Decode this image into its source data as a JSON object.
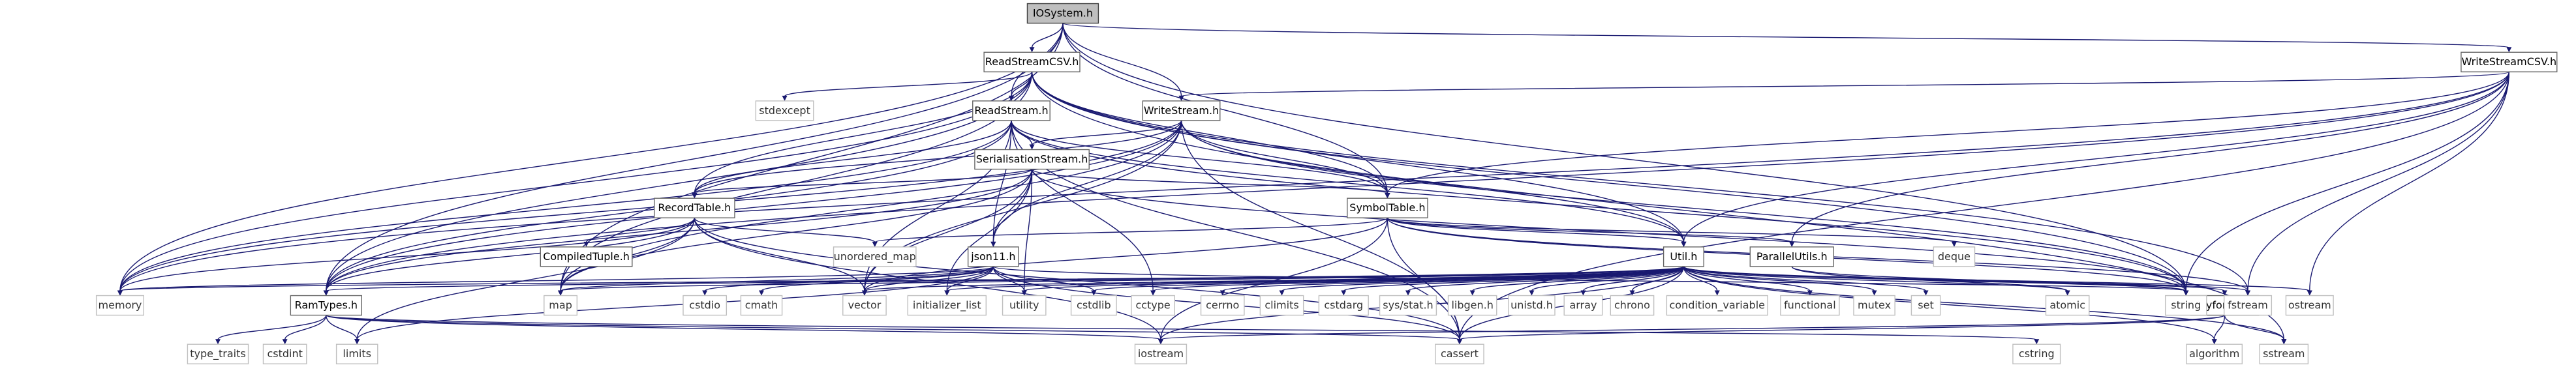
{
  "diagram": {
    "nodes": [
      {
        "id": "IOSystem",
        "label": "IOSystem.h",
        "kind": "root"
      },
      {
        "id": "ReadStreamCSV",
        "label": "ReadStreamCSV.h",
        "kind": "user"
      },
      {
        "id": "WriteStreamCSV",
        "label": "WriteStreamCSV.h",
        "kind": "user"
      },
      {
        "id": "ReadStream",
        "label": "ReadStream.h",
        "kind": "user"
      },
      {
        "id": "WriteStream",
        "label": "WriteStream.h",
        "kind": "user"
      },
      {
        "id": "SerialisationStream",
        "label": "SerialisationStream.h",
        "kind": "user"
      },
      {
        "id": "SymbolTable",
        "label": "SymbolTable.h",
        "kind": "user"
      },
      {
        "id": "RecordTable",
        "label": "RecordTable.h",
        "kind": "user"
      },
      {
        "id": "ParallelUtils",
        "label": "ParallelUtils.h",
        "kind": "user"
      },
      {
        "id": "CompiledTuple",
        "label": "CompiledTuple.h",
        "kind": "user"
      },
      {
        "id": "json11",
        "label": "json11.h",
        "kind": "user"
      },
      {
        "id": "Util",
        "label": "Util.h",
        "kind": "user"
      },
      {
        "id": "RamTypes",
        "label": "RamTypes.h",
        "kind": "user"
      },
      {
        "id": "tinyformat",
        "label": "tinyformat.h",
        "kind": "user"
      },
      {
        "id": "stdexcept",
        "label": "stdexcept",
        "kind": "sys"
      },
      {
        "id": "unordered_map",
        "label": "unordered_map",
        "kind": "sys"
      },
      {
        "id": "deque",
        "label": "deque",
        "kind": "sys"
      },
      {
        "id": "memory",
        "label": "memory",
        "kind": "sys"
      },
      {
        "id": "map",
        "label": "map",
        "kind": "sys"
      },
      {
        "id": "cstdio",
        "label": "cstdio",
        "kind": "sys"
      },
      {
        "id": "cmath",
        "label": "cmath",
        "kind": "sys"
      },
      {
        "id": "vector",
        "label": "vector",
        "kind": "sys"
      },
      {
        "id": "initializer_list",
        "label": "initializer_list",
        "kind": "sys"
      },
      {
        "id": "utility",
        "label": "utility",
        "kind": "sys"
      },
      {
        "id": "cstdlib",
        "label": "cstdlib",
        "kind": "sys"
      },
      {
        "id": "cctype",
        "label": "cctype",
        "kind": "sys"
      },
      {
        "id": "cerrno",
        "label": "cerrno",
        "kind": "sys"
      },
      {
        "id": "climits",
        "label": "climits",
        "kind": "sys"
      },
      {
        "id": "cstdarg",
        "label": "cstdarg",
        "kind": "sys"
      },
      {
        "id": "sys_stat",
        "label": "sys/stat.h",
        "kind": "sys"
      },
      {
        "id": "libgen",
        "label": "libgen.h",
        "kind": "sys"
      },
      {
        "id": "unistd",
        "label": "unistd.h",
        "kind": "sys"
      },
      {
        "id": "array",
        "label": "array",
        "kind": "sys"
      },
      {
        "id": "chrono",
        "label": "chrono",
        "kind": "sys"
      },
      {
        "id": "condition_variable",
        "label": "condition_variable",
        "kind": "sys"
      },
      {
        "id": "functional",
        "label": "functional",
        "kind": "sys"
      },
      {
        "id": "mutex",
        "label": "mutex",
        "kind": "sys"
      },
      {
        "id": "set",
        "label": "set",
        "kind": "sys"
      },
      {
        "id": "atomic",
        "label": "atomic",
        "kind": "sys"
      },
      {
        "id": "string",
        "label": "string",
        "kind": "sys"
      },
      {
        "id": "fstream",
        "label": "fstream",
        "kind": "sys"
      },
      {
        "id": "ostream",
        "label": "ostream",
        "kind": "sys"
      },
      {
        "id": "type_traits",
        "label": "type_traits",
        "kind": "sys"
      },
      {
        "id": "cstdint",
        "label": "cstdint",
        "kind": "sys"
      },
      {
        "id": "limits",
        "label": "limits",
        "kind": "sys"
      },
      {
        "id": "cstring",
        "label": "cstring",
        "kind": "sys"
      },
      {
        "id": "iostream",
        "label": "iostream",
        "kind": "sys"
      },
      {
        "id": "cassert",
        "label": "cassert",
        "kind": "sys"
      },
      {
        "id": "algorithm",
        "label": "algorithm",
        "kind": "sys"
      },
      {
        "id": "sstream",
        "label": "sstream",
        "kind": "sys"
      }
    ],
    "edges": [
      [
        "IOSystem",
        "ReadStreamCSV"
      ],
      [
        "IOSystem",
        "WriteStreamCSV"
      ],
      [
        "IOSystem",
        "ReadStream"
      ],
      [
        "IOSystem",
        "WriteStream"
      ],
      [
        "IOSystem",
        "SymbolTable"
      ],
      [
        "IOSystem",
        "RamTypes"
      ],
      [
        "IOSystem",
        "map"
      ],
      [
        "IOSystem",
        "memory"
      ],
      [
        "IOSystem",
        "string"
      ],
      [
        "ReadStreamCSV",
        "ReadStream"
      ],
      [
        "ReadStreamCSV",
        "SymbolTable"
      ],
      [
        "ReadStreamCSV",
        "RamTypes"
      ],
      [
        "ReadStreamCSV",
        "RecordTable"
      ],
      [
        "ReadStreamCSV",
        "Util"
      ],
      [
        "ReadStreamCSV",
        "stdexcept"
      ],
      [
        "ReadStreamCSV",
        "map"
      ],
      [
        "ReadStreamCSV",
        "memory"
      ],
      [
        "ReadStreamCSV",
        "string"
      ],
      [
        "ReadStreamCSV",
        "fstream"
      ],
      [
        "ReadStreamCSV",
        "sstream"
      ],
      [
        "WriteStreamCSV",
        "WriteStream"
      ],
      [
        "WriteStreamCSV",
        "SymbolTable"
      ],
      [
        "WriteStreamCSV",
        "ParallelUtils"
      ],
      [
        "WriteStreamCSV",
        "Util"
      ],
      [
        "WriteStreamCSV",
        "RamTypes"
      ],
      [
        "WriteStreamCSV",
        "memory"
      ],
      [
        "WriteStreamCSV",
        "string"
      ],
      [
        "WriteStreamCSV",
        "fstream"
      ],
      [
        "WriteStreamCSV",
        "ostream"
      ],
      [
        "WriteStreamCSV",
        "cassert"
      ],
      [
        "ReadStream",
        "SerialisationStream"
      ],
      [
        "ReadStream",
        "SymbolTable"
      ],
      [
        "ReadStream",
        "RecordTable"
      ],
      [
        "ReadStream",
        "json11"
      ],
      [
        "ReadStream",
        "RamTypes"
      ],
      [
        "ReadStream",
        "Util"
      ],
      [
        "ReadStream",
        "memory"
      ],
      [
        "ReadStream",
        "string"
      ],
      [
        "ReadStream",
        "vector"
      ],
      [
        "ReadStream",
        "cctype"
      ],
      [
        "ReadStream",
        "cassert"
      ],
      [
        "WriteStream",
        "SerialisationStream"
      ],
      [
        "WriteStream",
        "SymbolTable"
      ],
      [
        "WriteStream",
        "RecordTable"
      ],
      [
        "WriteStream",
        "json11"
      ],
      [
        "WriteStream",
        "RamTypes"
      ],
      [
        "WriteStream",
        "Util"
      ],
      [
        "WriteStream",
        "memory"
      ],
      [
        "WriteStream",
        "string"
      ],
      [
        "WriteStream",
        "vector"
      ],
      [
        "WriteStream",
        "map"
      ],
      [
        "WriteStream",
        "cassert"
      ],
      [
        "SerialisationStream",
        "SymbolTable"
      ],
      [
        "SerialisationStream",
        "RecordTable"
      ],
      [
        "SerialisationStream",
        "json11"
      ],
      [
        "SerialisationStream",
        "RamTypes"
      ],
      [
        "SerialisationStream",
        "map"
      ],
      [
        "SerialisationStream",
        "vector"
      ],
      [
        "SerialisationStream",
        "utility"
      ],
      [
        "SerialisationStream",
        "string"
      ],
      [
        "SerialisationStream",
        "initializer_list"
      ],
      [
        "SymbolTable",
        "ParallelUtils"
      ],
      [
        "SymbolTable",
        "Util"
      ],
      [
        "SymbolTable",
        "unordered_map"
      ],
      [
        "SymbolTable",
        "deque"
      ],
      [
        "SymbolTable",
        "string"
      ],
      [
        "SymbolTable",
        "vector"
      ],
      [
        "SymbolTable",
        "iostream"
      ],
      [
        "SymbolTable",
        "cassert"
      ],
      [
        "SymbolTable",
        "fstream"
      ],
      [
        "RecordTable",
        "CompiledTuple"
      ],
      [
        "RecordTable",
        "RamTypes"
      ],
      [
        "RecordTable",
        "unordered_map"
      ],
      [
        "RecordTable",
        "map"
      ],
      [
        "RecordTable",
        "vector"
      ],
      [
        "RecordTable",
        "limits"
      ],
      [
        "RecordTable",
        "iostream"
      ],
      [
        "RecordTable",
        "cassert"
      ],
      [
        "RecordTable",
        "memory"
      ],
      [
        "ParallelUtils",
        "atomic"
      ],
      [
        "ParallelUtils",
        "string"
      ],
      [
        "json11",
        "string"
      ],
      [
        "json11",
        "vector"
      ],
      [
        "json11",
        "map"
      ],
      [
        "json11",
        "memory"
      ],
      [
        "json11",
        "initializer_list"
      ],
      [
        "json11",
        "cstdio"
      ],
      [
        "json11",
        "cmath"
      ],
      [
        "json11",
        "utility"
      ],
      [
        "json11",
        "cstdlib"
      ],
      [
        "json11",
        "cassert"
      ],
      [
        "json11",
        "limits"
      ],
      [
        "Util",
        "RamTypes"
      ],
      [
        "Util",
        "tinyformat"
      ],
      [
        "Util",
        "map"
      ],
      [
        "Util",
        "vector"
      ],
      [
        "Util",
        "utility"
      ],
      [
        "Util",
        "cstdlib"
      ],
      [
        "Util",
        "cctype"
      ],
      [
        "Util",
        "cerrno"
      ],
      [
        "Util",
        "climits"
      ],
      [
        "Util",
        "cstdarg"
      ],
      [
        "Util",
        "sys_stat"
      ],
      [
        "Util",
        "libgen"
      ],
      [
        "Util",
        "unistd"
      ],
      [
        "Util",
        "array"
      ],
      [
        "Util",
        "chrono"
      ],
      [
        "Util",
        "condition_variable"
      ],
      [
        "Util",
        "functional"
      ],
      [
        "Util",
        "mutex"
      ],
      [
        "Util",
        "set"
      ],
      [
        "Util",
        "atomic"
      ],
      [
        "Util",
        "string"
      ],
      [
        "Util",
        "fstream"
      ],
      [
        "Util",
        "ostream"
      ],
      [
        "Util",
        "sstream"
      ],
      [
        "Util",
        "iostream"
      ],
      [
        "Util",
        "cassert"
      ],
      [
        "Util",
        "algorithm"
      ],
      [
        "Util",
        "memory"
      ],
      [
        "Util",
        "initializer_list"
      ],
      [
        "RamTypes",
        "type_traits"
      ],
      [
        "RamTypes",
        "cstdint"
      ],
      [
        "RamTypes",
        "limits"
      ],
      [
        "RamTypes",
        "cstring"
      ],
      [
        "RamTypes",
        "iostream"
      ],
      [
        "RamTypes",
        "cassert"
      ],
      [
        "tinyformat",
        "algorithm"
      ],
      [
        "tinyformat",
        "cassert"
      ],
      [
        "tinyformat",
        "iostream"
      ],
      [
        "tinyformat",
        "sstream"
      ]
    ]
  }
}
